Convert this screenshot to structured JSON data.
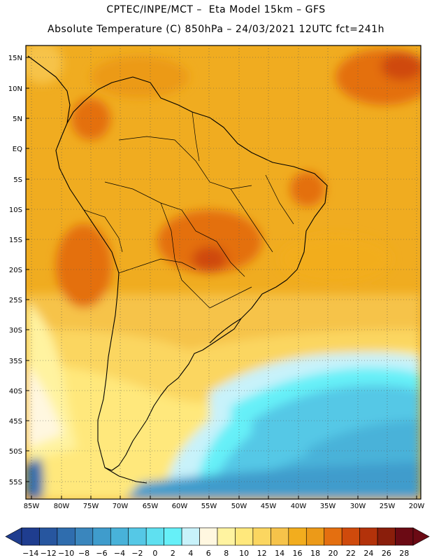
{
  "header": {
    "line1": "CPTEC/INPE/MCT –  Eta Model 15km – GFS",
    "line2": "Absolute Temperature (C) 850hPa – 24/03/2021 12UTC fct=241h"
  },
  "axes": {
    "lat_labels": [
      "15N",
      "10N",
      "5N",
      "EQ",
      "5S",
      "10S",
      "15S",
      "20S",
      "25S",
      "30S",
      "35S",
      "40S",
      "45S",
      "50S",
      "55S"
    ],
    "lon_labels": [
      "85W",
      "80W",
      "75W",
      "70W",
      "65W",
      "60W",
      "55W",
      "50W",
      "45W",
      "40W",
      "35W",
      "30W",
      "25W",
      "20W"
    ]
  },
  "colorbar": {
    "labels": [
      "-14",
      "-12",
      "-10",
      "-8",
      "-6",
      "-4",
      "-2",
      "0",
      "2",
      "4",
      "6",
      "8",
      "10",
      "12",
      "14",
      "16",
      "18",
      "20",
      "22",
      "24",
      "26",
      "28"
    ],
    "colors": [
      "#1f3d8f",
      "#27569f",
      "#2f6dae",
      "#3a86bd",
      "#3f9ccc",
      "#48b2d9",
      "#55c8e6",
      "#5fe0f0",
      "#66f0f8",
      "#c8f2fa",
      "#fff7e0",
      "#fff3a0",
      "#ffe87c",
      "#fbd660",
      "#f6c34a",
      "#f2ad1e",
      "#ec9a18",
      "#e46f10",
      "#cf4a0c",
      "#b3320a",
      "#8a1e0b",
      "#6b0a14"
    ]
  },
  "map": {
    "grid_style": "dotted",
    "ocean_base_color": "#f0ac20",
    "land_outline_color": "#000000"
  }
}
